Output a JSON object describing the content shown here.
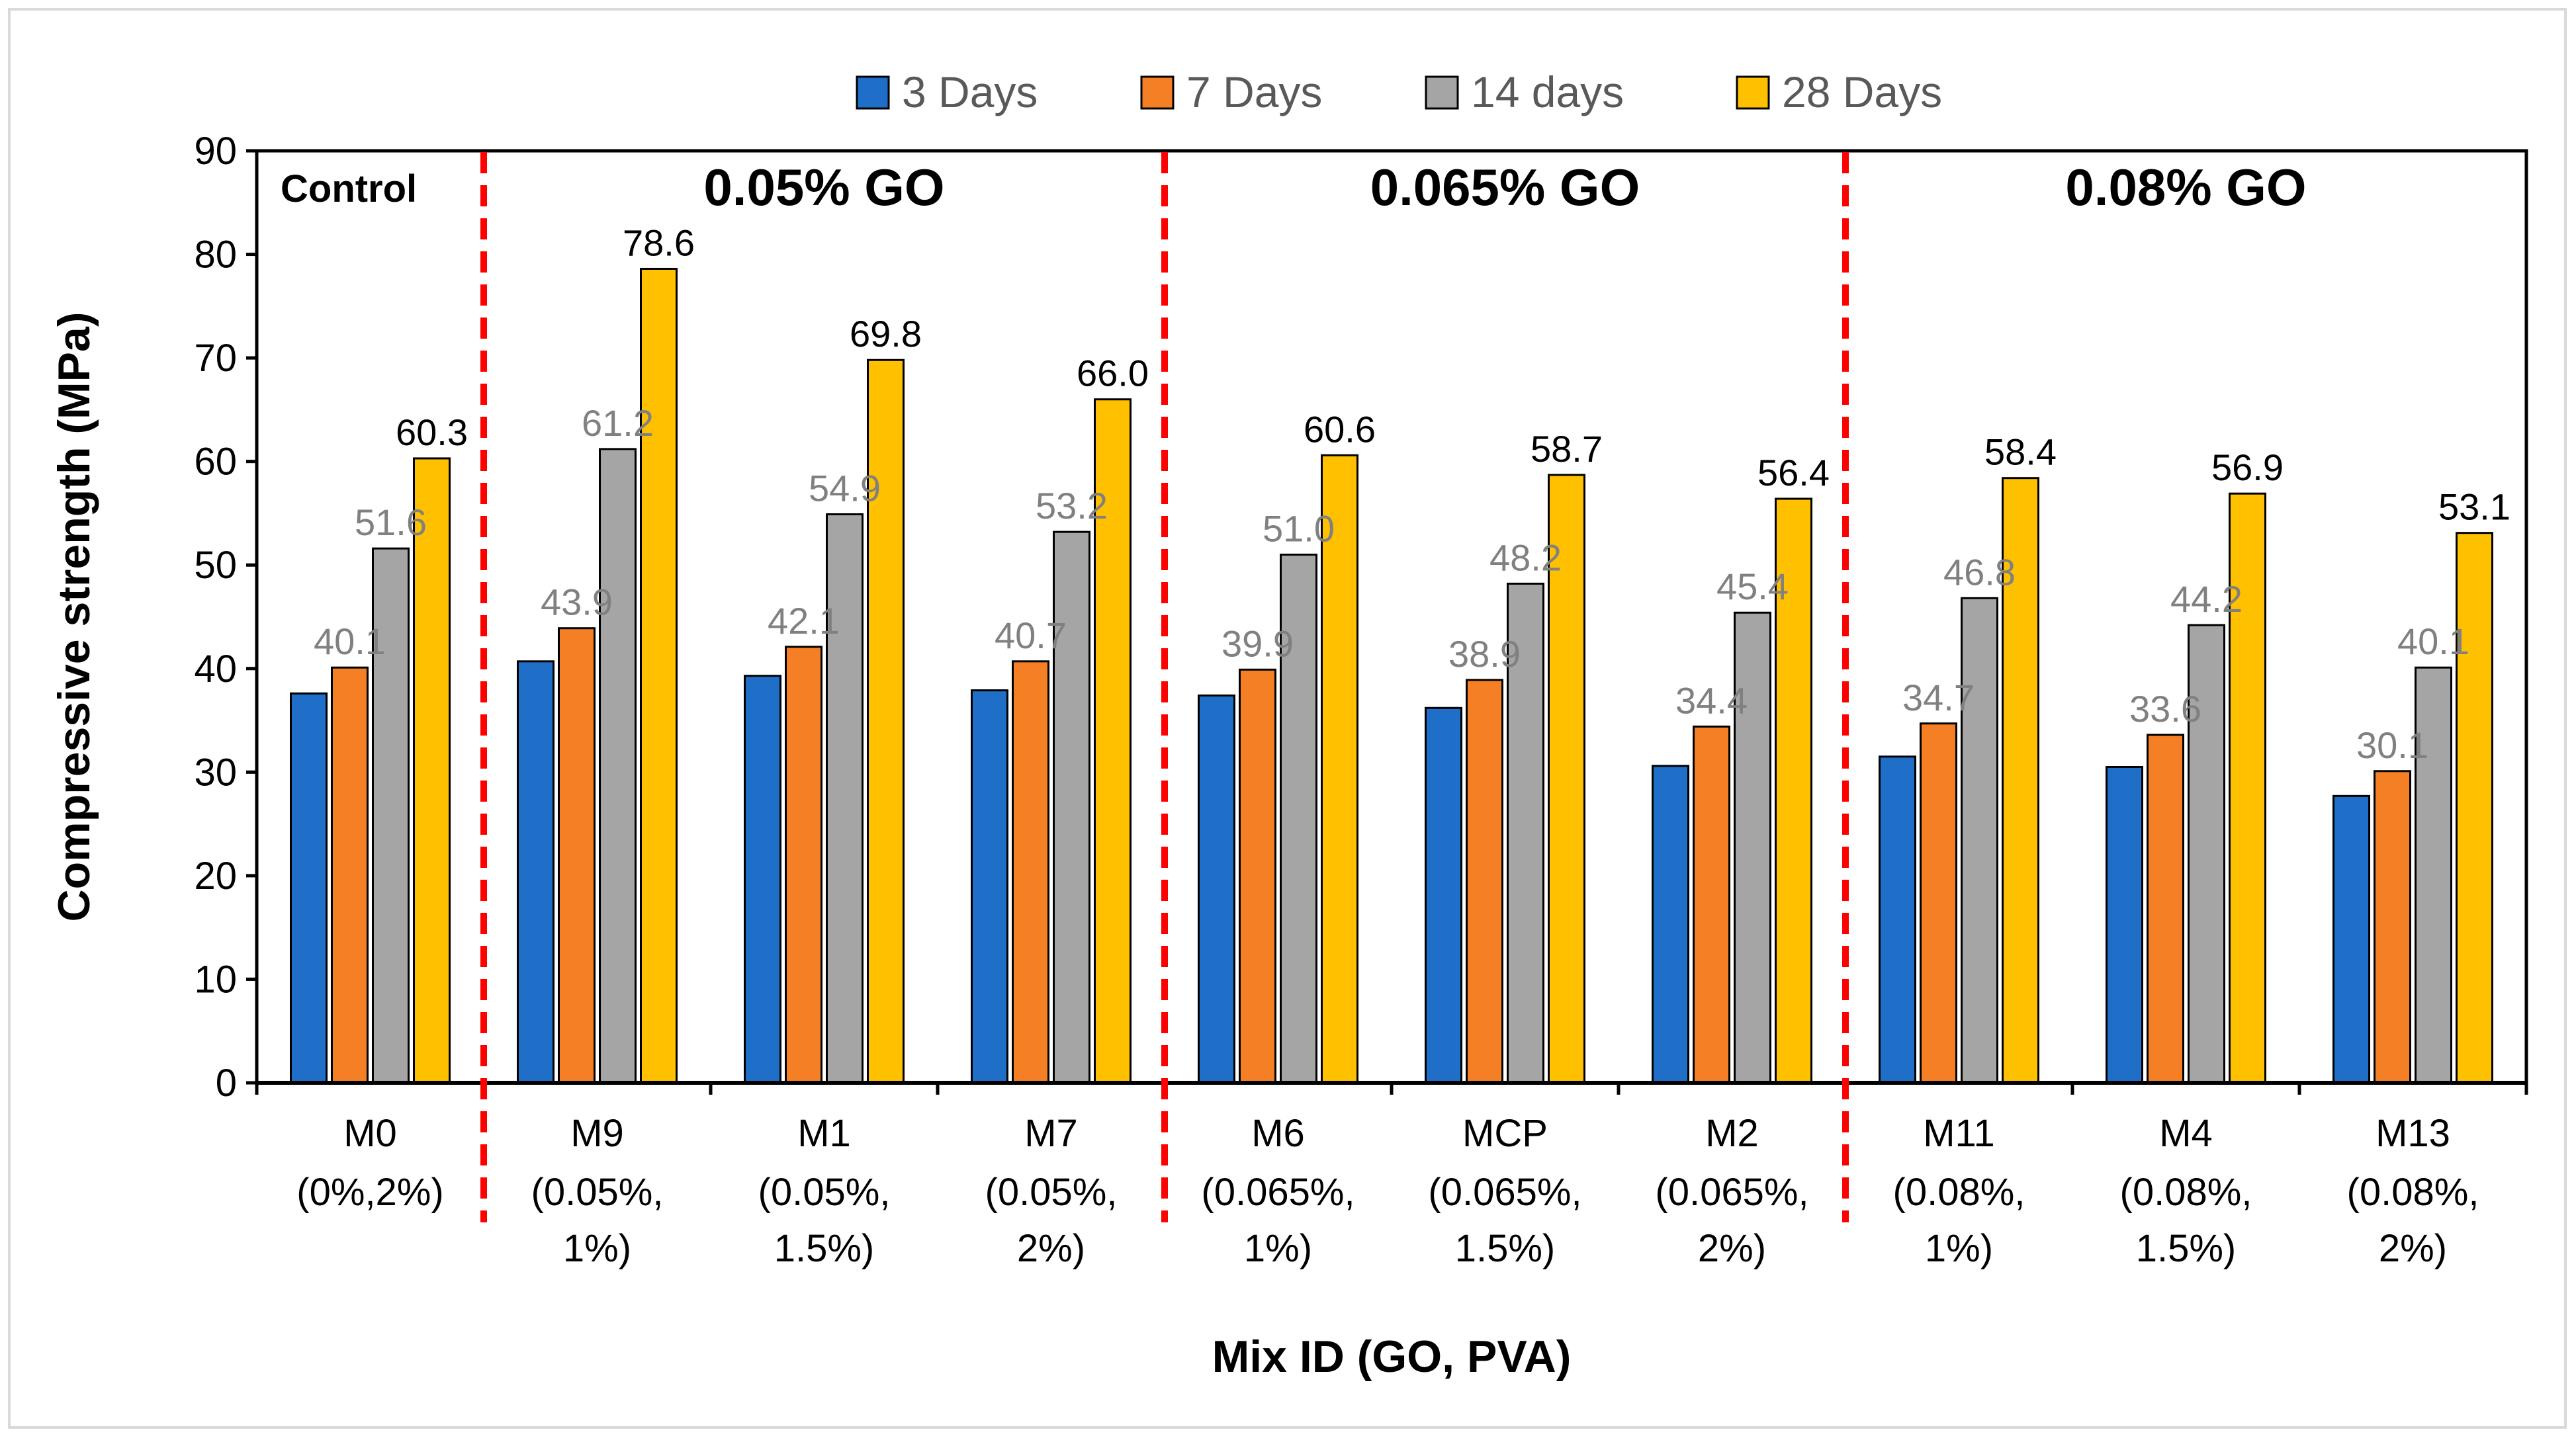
{
  "chart_data": {
    "type": "bar",
    "title": "",
    "xlabel": "Mix ID (GO, PVA)",
    "ylabel": "Compressive strength (MPa)",
    "ylim": [
      0,
      90
    ],
    "yticks": [
      0,
      10,
      20,
      30,
      40,
      50,
      60,
      70,
      80,
      90
    ],
    "legend_position": "top",
    "categories": [
      {
        "id": "M0",
        "lines": [
          "(0%,2%)"
        ]
      },
      {
        "id": "M9",
        "lines": [
          "(0.05%,",
          "1%)"
        ]
      },
      {
        "id": "M1",
        "lines": [
          "(0.05%,",
          "1.5%)"
        ]
      },
      {
        "id": "M7",
        "lines": [
          "(0.05%,",
          "2%)"
        ]
      },
      {
        "id": "M6",
        "lines": [
          "(0.065%,",
          "1%)"
        ]
      },
      {
        "id": "MCP",
        "lines": [
          "(0.065%,",
          "1.5%)"
        ]
      },
      {
        "id": "M2",
        "lines": [
          "(0.065%,",
          "2%)"
        ]
      },
      {
        "id": "M11",
        "lines": [
          "(0.08%,",
          "1%)"
        ]
      },
      {
        "id": "M4",
        "lines": [
          "(0.08%,",
          "1.5%)"
        ]
      },
      {
        "id": "M13",
        "lines": [
          "(0.08%,",
          "2%)"
        ]
      }
    ],
    "series": [
      {
        "name": "3 Days",
        "color": "#1f6fc8",
        "show_labels": false,
        "values": [
          37.6,
          40.7,
          39.3,
          37.9,
          37.4,
          36.2,
          30.6,
          31.5,
          30.5,
          27.7
        ]
      },
      {
        "name": "7 Days",
        "color": "#f47f24",
        "show_labels": true,
        "label_color": "#808080",
        "values": [
          40.1,
          43.9,
          42.1,
          40.7,
          39.9,
          38.9,
          34.4,
          34.7,
          33.6,
          30.1
        ]
      },
      {
        "name": "14 days",
        "color": "#a5a5a5",
        "show_labels": true,
        "label_color": "#808080",
        "values": [
          51.6,
          61.2,
          54.9,
          53.2,
          51.0,
          48.2,
          45.4,
          46.8,
          44.2,
          40.1
        ]
      },
      {
        "name": "28 Days",
        "color": "#ffc000",
        "show_labels": true,
        "label_color": "#000000",
        "values": [
          60.3,
          78.6,
          69.8,
          66.0,
          60.6,
          58.7,
          56.4,
          58.4,
          56.9,
          53.1
        ]
      }
    ],
    "annotations": [
      {
        "text": "Control",
        "group_start": 0,
        "group_end": 0,
        "align": "left"
      },
      {
        "text": "0.05% GO",
        "group_start": 1,
        "group_end": 3,
        "align": "center"
      },
      {
        "text": "0.065% GO",
        "group_start": 4,
        "group_end": 6,
        "align": "center"
      },
      {
        "text": "0.08% GO",
        "group_start": 7,
        "group_end": 9,
        "align": "center"
      }
    ],
    "dividers_after_category": [
      0,
      3,
      6
    ],
    "divider_color": "#ff0000"
  }
}
